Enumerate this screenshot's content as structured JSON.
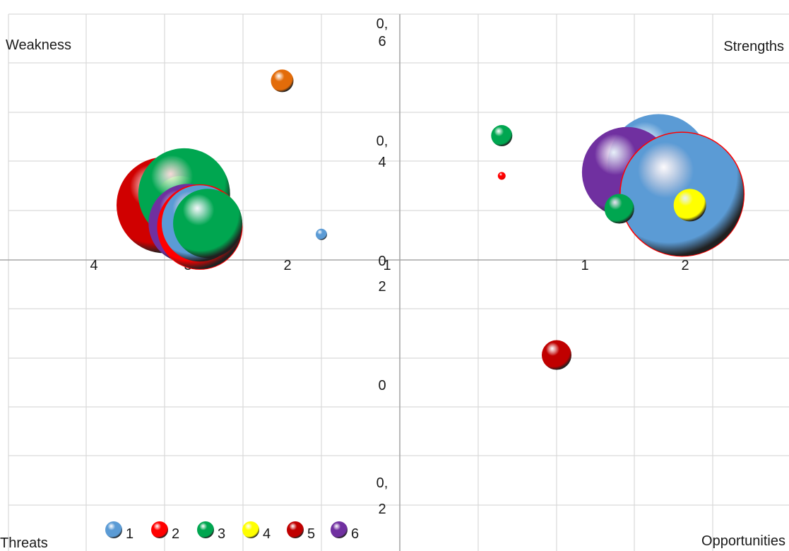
{
  "chart_data": {
    "type": "bubble",
    "corner_labels": {
      "top_left": "Weakness",
      "top_right": "Strengths",
      "bottom_left": "Threats",
      "bottom_right": "Opportunities"
    },
    "x_axis": {
      "range": [
        -4.0,
        2.5
      ],
      "left_ticks": [
        {
          "value": -3.75,
          "label": "4"
        },
        {
          "value": -3.0,
          "label": "3"
        },
        {
          "value": -2.0,
          "label": "2"
        },
        {
          "value": -1.0,
          "label": "1"
        }
      ],
      "right_ticks": [
        {
          "value": 1.0,
          "label": "1"
        },
        {
          "value": 2.0,
          "label": "2"
        }
      ]
    },
    "y_axis": {
      "range": [
        -0.25,
        0.7
      ],
      "ticks": [
        {
          "value": 0.6,
          "label": "0,\n6"
        },
        {
          "value": 0.4,
          "label": "0,\n4"
        },
        {
          "value": 0.2,
          "label": "0\n2"
        },
        {
          "value": 0.0,
          "label": "0"
        },
        {
          "value": -0.2,
          "label": "0,\n2"
        }
      ]
    },
    "grid": true,
    "legend": {
      "position": "bottom-left",
      "entries": [
        {
          "label": "1",
          "color": "#5b9bd5"
        },
        {
          "label": "2",
          "color": "#ff0000"
        },
        {
          "label": "3",
          "color": "#00a650"
        },
        {
          "label": "4",
          "color": "#ffff00"
        },
        {
          "label": "5",
          "color": "#c00000"
        },
        {
          "label": "6",
          "color": "#7030a0"
        }
      ]
    },
    "bubbles": [
      {
        "series": "5",
        "color": "#d00000",
        "x": -3.0,
        "y": 0.075,
        "size": 68
      },
      {
        "series": "4",
        "color": "#ffff00",
        "x": -2.8,
        "y": 0.08,
        "size": 36
      },
      {
        "series": "3",
        "color": "#00a650",
        "x": -2.75,
        "y": 0.09,
        "size": 65
      },
      {
        "series": "6",
        "color": "#7030a0",
        "x": -2.7,
        "y": 0.05,
        "size": 56
      },
      {
        "series": "2",
        "color": "#ff0000",
        "x": -2.55,
        "y": 0.045,
        "size": 60
      },
      {
        "series": "1",
        "color": "#5b9bd5",
        "x": -2.55,
        "y": 0.05,
        "size": 54
      },
      {
        "series": "3",
        "color": "#00a650",
        "x": -2.45,
        "y": 0.05,
        "size": 49
      },
      {
        "series": "5",
        "color": "#e36c0a",
        "x": -1.5,
        "y": 0.245,
        "size": 16
      },
      {
        "series": "1",
        "color": "#5b9bd5",
        "x": -1.0,
        "y": 0.035,
        "size": 8
      },
      {
        "series": "3",
        "color": "#00a650",
        "x": 0.65,
        "y": 0.17,
        "size": 15
      },
      {
        "series": "2",
        "color": "#ff0000",
        "x": 0.65,
        "y": 0.115,
        "size": 5
      },
      {
        "series": "5",
        "color": "#c00000",
        "x": 1.0,
        "y": -0.13,
        "size": 21
      },
      {
        "series": "1",
        "color": "#5b9bd5",
        "x": 1.65,
        "y": 0.13,
        "size": 72
      },
      {
        "series": "6",
        "color": "#7030a0",
        "x": 1.45,
        "y": 0.12,
        "size": 64
      },
      {
        "series": "2",
        "color": "#ff0000",
        "x": 1.8,
        "y": 0.09,
        "size": 88
      },
      {
        "series": "1",
        "color": "#5b9bd5",
        "x": 1.8,
        "y": 0.09,
        "size": 87
      },
      {
        "series": "3",
        "color": "#00a650",
        "x": 1.4,
        "y": 0.07,
        "size": 21
      },
      {
        "series": "4",
        "color": "#ffff00",
        "x": 1.85,
        "y": 0.075,
        "size": 23
      }
    ]
  }
}
